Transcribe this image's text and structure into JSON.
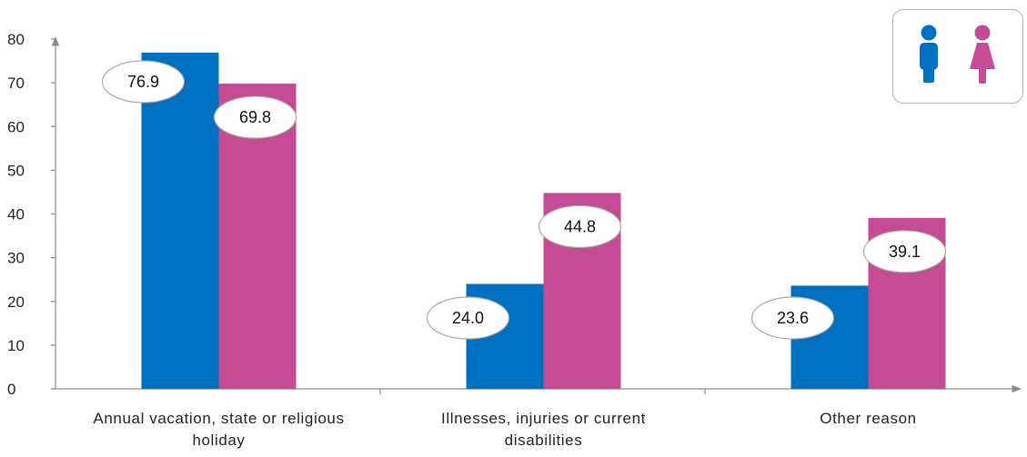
{
  "chart_data": {
    "type": "bar",
    "categories": [
      [
        "Annual vacation, state or religious",
        "holiday"
      ],
      [
        "Illnesses, injuries or current",
        "disabilities"
      ],
      [
        "Other reason"
      ]
    ],
    "series": [
      {
        "icon": "male-icon",
        "color": "#0070c0",
        "values": [
          76.9,
          24.0,
          23.6
        ]
      },
      {
        "icon": "female-icon",
        "color": "#c44b94",
        "values": [
          69.8,
          44.8,
          39.1
        ]
      }
    ],
    "ylim": [
      0,
      80
    ],
    "yticks": [
      0,
      10,
      20,
      30,
      40,
      50,
      60,
      70,
      80
    ],
    "label_format": "one-decimal",
    "grid": false,
    "legend": "top-right"
  }
}
